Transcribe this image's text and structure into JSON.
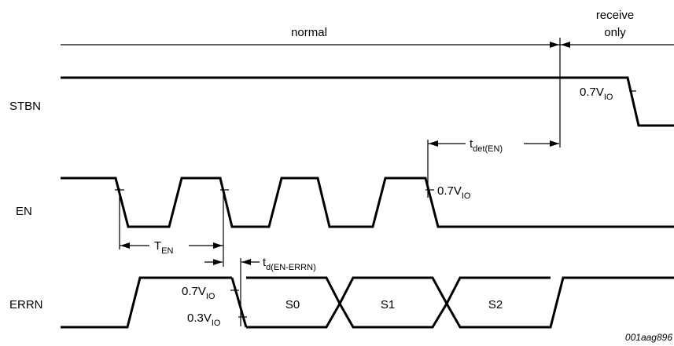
{
  "regions": {
    "normal": "normal",
    "receive_only_line1": "receive",
    "receive_only_line2": "only"
  },
  "signals": {
    "stbn": "STBN",
    "en": "EN",
    "errn": "ERRN"
  },
  "thresholds": {
    "v07_main": "0.7V",
    "v03_main": "0.3V",
    "v_sub": "IO"
  },
  "timing": {
    "tdet_main": "t",
    "tdet_sub": "det(EN)",
    "ten_main": "T",
    "ten_sub": "EN",
    "td_main": "t",
    "td_sub": "d(EN-ERRN)"
  },
  "states": {
    "s0": "S0",
    "s1": "S1",
    "s2": "S2"
  },
  "figure_ref": "001aag896"
}
